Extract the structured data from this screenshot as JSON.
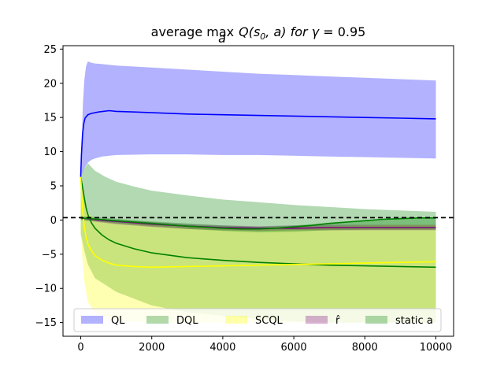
{
  "chart_data": {
    "type": "line",
    "title": "average max_a Q(s₀, a) for γ = 0.95",
    "title_parts": {
      "prefix": "average max",
      "sub": "a",
      "func": "Q(s",
      "func_sub": "0",
      "func_rest": ", a) for ",
      "gamma": "γ",
      "eq": " = 0.95"
    },
    "xlabel": "",
    "ylabel": "",
    "xlim": [
      -500,
      10500
    ],
    "ylim": [
      -17,
      25.5
    ],
    "xticks": [
      0,
      2000,
      4000,
      6000,
      8000,
      10000
    ],
    "yticks": [
      -15,
      -10,
      -5,
      0,
      5,
      10,
      15,
      20,
      25
    ],
    "grid": false,
    "hline": {
      "y": 0.35,
      "style": "dashed",
      "color": "#000000"
    },
    "legend": {
      "placement": "lower-center",
      "ncol": 5
    },
    "bands": [
      {
        "name": "QL",
        "color": "#0000ff",
        "alpha": 0.3,
        "x": [
          0,
          60,
          100,
          150,
          200,
          300,
          400,
          600,
          1000,
          2000,
          3000,
          4000,
          5000,
          6000,
          7000,
          8000,
          9000,
          10000
        ],
        "upper": [
          6.5,
          17,
          20.5,
          22.5,
          23.2,
          23.0,
          22.9,
          22.8,
          22.6,
          22.3,
          22.0,
          21.7,
          21.4,
          21.2,
          21.0,
          20.8,
          20.6,
          20.4
        ],
        "lower": [
          6.5,
          7,
          7.5,
          8.0,
          8.4,
          8.8,
          9.0,
          9.3,
          9.5,
          9.6,
          9.6,
          9.5,
          9.5,
          9.4,
          9.3,
          9.2,
          9.1,
          9.0
        ]
      },
      {
        "name": "DQL",
        "color": "#008000",
        "alpha": 0.3,
        "x": [
          0,
          100,
          200,
          400,
          700,
          1000,
          1500,
          2000,
          3000,
          4000,
          5000,
          6000,
          7000,
          8000,
          9000,
          10000
        ],
        "upper": [
          6.5,
          7.5,
          8.3,
          7.2,
          6.3,
          5.6,
          4.9,
          4.3,
          3.6,
          3.0,
          2.6,
          2.2,
          1.9,
          1.6,
          1.4,
          1.2
        ],
        "lower": [
          -2.0,
          -4.5,
          -6.5,
          -8.5,
          -9.5,
          -10.5,
          -11.5,
          -12.5,
          -13.5,
          -14.0,
          -14.5,
          -14.8,
          -15.0,
          -15.0,
          -15.0,
          -15.0
        ]
      },
      {
        "name": "SCQL",
        "color": "#ffff00",
        "alpha": 0.3,
        "x": [
          0,
          50,
          100,
          200,
          400,
          700,
          1000,
          2000,
          3000,
          4000,
          5000,
          6000,
          7000,
          8000,
          9000,
          10000
        ],
        "upper": [
          6.5,
          5.5,
          3.0,
          1.0,
          0.2,
          -0.2,
          -0.4,
          -0.6,
          -0.8,
          -1.0,
          -1.1,
          -1.0,
          -0.9,
          -0.8,
          -0.7,
          -0.7
        ],
        "lower": [
          -2.0,
          -6.0,
          -9.0,
          -12.0,
          -13.5,
          -14.3,
          -14.7,
          -15.0,
          -15.0,
          -15.0,
          -15.0,
          -15.0,
          -15.0,
          -15.0,
          -15.0,
          -15.0
        ]
      },
      {
        "name": "r̂",
        "color": "#800080",
        "alpha": 0.3,
        "x": [
          0,
          200,
          500,
          1000,
          2000,
          3000,
          4000,
          5000,
          6000,
          7000,
          8000,
          9000,
          10000
        ],
        "upper": [
          0.4,
          0.3,
          0.2,
          0.0,
          -0.3,
          -0.6,
          -0.8,
          -0.9,
          -0.8,
          -0.7,
          -0.7,
          -0.7,
          -0.7
        ],
        "lower": [
          0.1,
          -0.1,
          -0.3,
          -0.6,
          -1.0,
          -1.3,
          -1.5,
          -1.6,
          -1.5,
          -1.5,
          -1.5,
          -1.5,
          -1.5
        ]
      },
      {
        "name": "static a",
        "color": "#008000",
        "alpha": 0.3,
        "x": [
          0,
          500,
          1000,
          2000,
          3000,
          4000,
          5000,
          6000,
          7000,
          8000,
          9000,
          10000
        ],
        "upper": [
          0.6,
          0.4,
          0.2,
          -0.2,
          -0.5,
          -0.8,
          -1.0,
          -0.8,
          -0.4,
          0.0,
          0.3,
          0.4
        ],
        "lower": [
          0.0,
          -0.2,
          -0.5,
          -0.9,
          -1.3,
          -1.6,
          -1.8,
          -1.7,
          -1.5,
          -1.4,
          -1.4,
          -1.4
        ]
      }
    ],
    "series": [
      {
        "color": "#0000ff",
        "x": [
          0,
          20,
          50,
          80,
          120,
          200,
          300,
          500,
          800,
          1000,
          1500,
          2000,
          3000,
          4000,
          5000,
          6000,
          7000,
          8000,
          9000,
          10000
        ],
        "y": [
          6.3,
          9.5,
          12.5,
          14.0,
          14.9,
          15.4,
          15.6,
          15.8,
          16.0,
          15.9,
          15.8,
          15.7,
          15.5,
          15.4,
          15.3,
          15.2,
          15.1,
          15.0,
          14.9,
          14.8
        ]
      },
      {
        "color": "#008000",
        "x": [
          0,
          50,
          100,
          150,
          200,
          300,
          400,
          600,
          800,
          1000,
          1500,
          2000,
          3000,
          4000,
          5000,
          6000,
          7000,
          8000,
          9000,
          10000
        ],
        "y": [
          6.3,
          4.8,
          3.2,
          1.8,
          0.8,
          -0.4,
          -1.2,
          -2.2,
          -2.9,
          -3.4,
          -4.2,
          -4.8,
          -5.5,
          -5.9,
          -6.2,
          -6.4,
          -6.6,
          -6.7,
          -6.8,
          -6.9
        ]
      },
      {
        "color": "#ffff00",
        "x": [
          0,
          30,
          60,
          100,
          150,
          200,
          300,
          400,
          600,
          800,
          1000,
          1500,
          2000,
          3000,
          4000,
          5000,
          6000,
          7000,
          8000,
          9000,
          10000
        ],
        "y": [
          6.3,
          3.5,
          1.0,
          -1.0,
          -2.5,
          -3.5,
          -4.5,
          -5.2,
          -5.9,
          -6.3,
          -6.6,
          -6.8,
          -6.9,
          -6.8,
          -6.7,
          -6.6,
          -6.5,
          -6.4,
          -6.3,
          -6.2,
          -6.1
        ]
      },
      {
        "color": "#800080",
        "x": [
          0,
          200,
          500,
          1000,
          2000,
          3000,
          4000,
          5000,
          6000,
          7000,
          8000,
          9000,
          10000
        ],
        "y": [
          0.3,
          0.2,
          0.0,
          -0.2,
          -0.6,
          -0.9,
          -1.1,
          -1.2,
          -1.2,
          -1.1,
          -1.1,
          -1.1,
          -1.1
        ]
      },
      {
        "color": "#008000",
        "x": [
          0,
          500,
          1000,
          2000,
          3000,
          4000,
          4500,
          5000,
          5500,
          6000,
          6500,
          7000,
          7500,
          8000,
          8500,
          9000,
          9500,
          10000
        ],
        "y": [
          0.3,
          0.1,
          -0.1,
          -0.5,
          -0.9,
          -1.2,
          -1.3,
          -1.3,
          -1.2,
          -1.0,
          -0.8,
          -0.5,
          -0.3,
          -0.1,
          0.1,
          0.2,
          0.3,
          0.3
        ]
      }
    ],
    "legend_entries": [
      {
        "label": "QL",
        "color": "#0000ff",
        "alpha": 0.3
      },
      {
        "label": "DQL",
        "color": "#008000",
        "alpha": 0.3
      },
      {
        "label": "SCQL",
        "color": "#ffff00",
        "alpha": 0.3
      },
      {
        "label": "r̂",
        "color": "#800080",
        "alpha": 0.3
      },
      {
        "label": "static a",
        "color": "#008000",
        "alpha": 0.3
      }
    ]
  }
}
